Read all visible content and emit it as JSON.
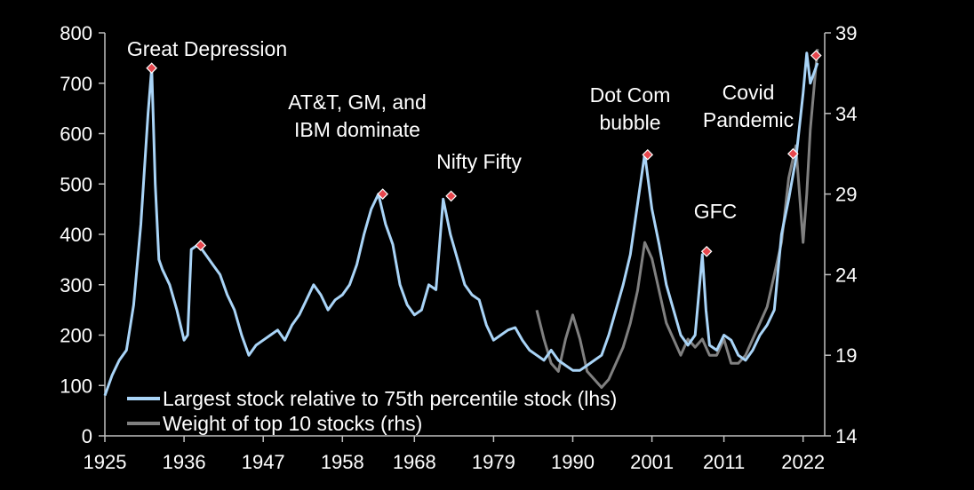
{
  "chart_data": {
    "type": "line",
    "title": "",
    "xlabel": "",
    "ylabel_left": "",
    "ylabel_right": "",
    "x_ticks": [
      "1925",
      "1936",
      "1947",
      "1958",
      "1968",
      "1979",
      "1990",
      "2001",
      "2011",
      "2022"
    ],
    "x_range": [
      1925,
      2025
    ],
    "ylim_left": [
      0,
      800
    ],
    "y_ticks_left": [
      "0",
      "100",
      "200",
      "300",
      "400",
      "500",
      "600",
      "700",
      "800"
    ],
    "ylim_right": [
      14,
      39
    ],
    "y_ticks_right": [
      "14",
      "19",
      "24",
      "29",
      "34",
      "39"
    ],
    "grid": false,
    "legend_position": "bottom-left",
    "series": [
      {
        "name": "Largest stock relative to 75th percentile stock (lhs)",
        "axis": "left",
        "color": "#a9d4f7",
        "x": [
          1925,
          1926,
          1927,
          1928,
          1929,
          1930,
          1931,
          1931.5,
          1932,
          1932.5,
          1933,
          1934,
          1935,
          1936,
          1936.5,
          1937,
          1938,
          1939,
          1940,
          1941,
          1942,
          1943,
          1944,
          1945,
          1946,
          1947,
          1948,
          1949,
          1950,
          1951,
          1952,
          1953,
          1954,
          1955,
          1956,
          1957,
          1958,
          1959,
          1960,
          1961,
          1962,
          1963,
          1964,
          1965,
          1966,
          1967,
          1968,
          1969,
          1970,
          1971,
          1972,
          1973,
          1974,
          1975,
          1976,
          1977,
          1978,
          1979,
          1980,
          1981,
          1982,
          1983,
          1984,
          1985,
          1986,
          1987,
          1988,
          1989,
          1990,
          1991,
          1992,
          1993,
          1994,
          1995,
          1996,
          1997,
          1998,
          1999,
          2000,
          2001,
          2002,
          2003,
          2004,
          2005,
          2006,
          2007,
          2008,
          2008.5,
          2009,
          2010,
          2011,
          2012,
          2013,
          2014,
          2015,
          2016,
          2017,
          2018,
          2019,
          2020,
          2021,
          2022,
          2022.5,
          2023,
          2024
        ],
        "values": [
          80,
          120,
          150,
          170,
          260,
          420,
          640,
          730,
          500,
          350,
          330,
          300,
          250,
          190,
          200,
          370,
          380,
          360,
          340,
          320,
          280,
          250,
          200,
          160,
          180,
          190,
          200,
          210,
          190,
          220,
          240,
          270,
          300,
          280,
          250,
          270,
          280,
          300,
          340,
          400,
          450,
          480,
          420,
          380,
          300,
          260,
          240,
          250,
          300,
          290,
          470,
          400,
          350,
          300,
          280,
          270,
          220,
          190,
          200,
          210,
          215,
          190,
          170,
          160,
          150,
          170,
          150,
          140,
          130,
          130,
          140,
          150,
          160,
          200,
          250,
          300,
          360,
          460,
          560,
          450,
          380,
          300,
          250,
          200,
          180,
          200,
          360,
          250,
          180,
          170,
          200,
          190,
          160,
          150,
          170,
          200,
          220,
          250,
          400,
          470,
          550,
          680,
          760,
          700,
          740
        ]
      },
      {
        "name": "Weight of top 10 stocks (rhs)",
        "axis": "right",
        "color": "#808080",
        "x": [
          1985,
          1986,
          1987,
          1988,
          1989,
          1990,
          1991,
          1992,
          1993,
          1994,
          1995,
          1996,
          1997,
          1998,
          1999,
          2000,
          2001,
          2002,
          2003,
          2004,
          2005,
          2006,
          2007,
          2008,
          2009,
          2010,
          2011,
          2012,
          2013,
          2014,
          2015,
          2016,
          2017,
          2018,
          2019,
          2020,
          2021,
          2022,
          2022.5,
          2023,
          2024
        ],
        "values": [
          21.8,
          20,
          18.5,
          18,
          20,
          21.5,
          20,
          18,
          17.5,
          17,
          17.5,
          18.5,
          19.5,
          21,
          23,
          26,
          25,
          23,
          21,
          20,
          19,
          20,
          19.5,
          20,
          19,
          19,
          20,
          18.5,
          18.5,
          19,
          20,
          21,
          22,
          24,
          26,
          30,
          32,
          26,
          29,
          33,
          38
        ]
      }
    ],
    "markers": [
      {
        "label": "Great Depression",
        "year": 1931.5,
        "value": 730
      },
      {
        "label": "",
        "year": 1938.3,
        "value": 378
      },
      {
        "label": "AT&T, GM, and IBM dominate",
        "year": 1963.6,
        "value": 480
      },
      {
        "label": "Nifty Fifty",
        "year": 1973.1,
        "value": 476
      },
      {
        "label": "Dot Com bubble",
        "year": 2000.4,
        "value": 558
      },
      {
        "label": "GFC",
        "year": 2008.6,
        "value": 366
      },
      {
        "label": "Covid Pandemic",
        "year": 2020.6,
        "value": 560
      },
      {
        "label": "",
        "year": 2023.8,
        "value": 755
      }
    ],
    "marker_color": "#e6474e"
  }
}
